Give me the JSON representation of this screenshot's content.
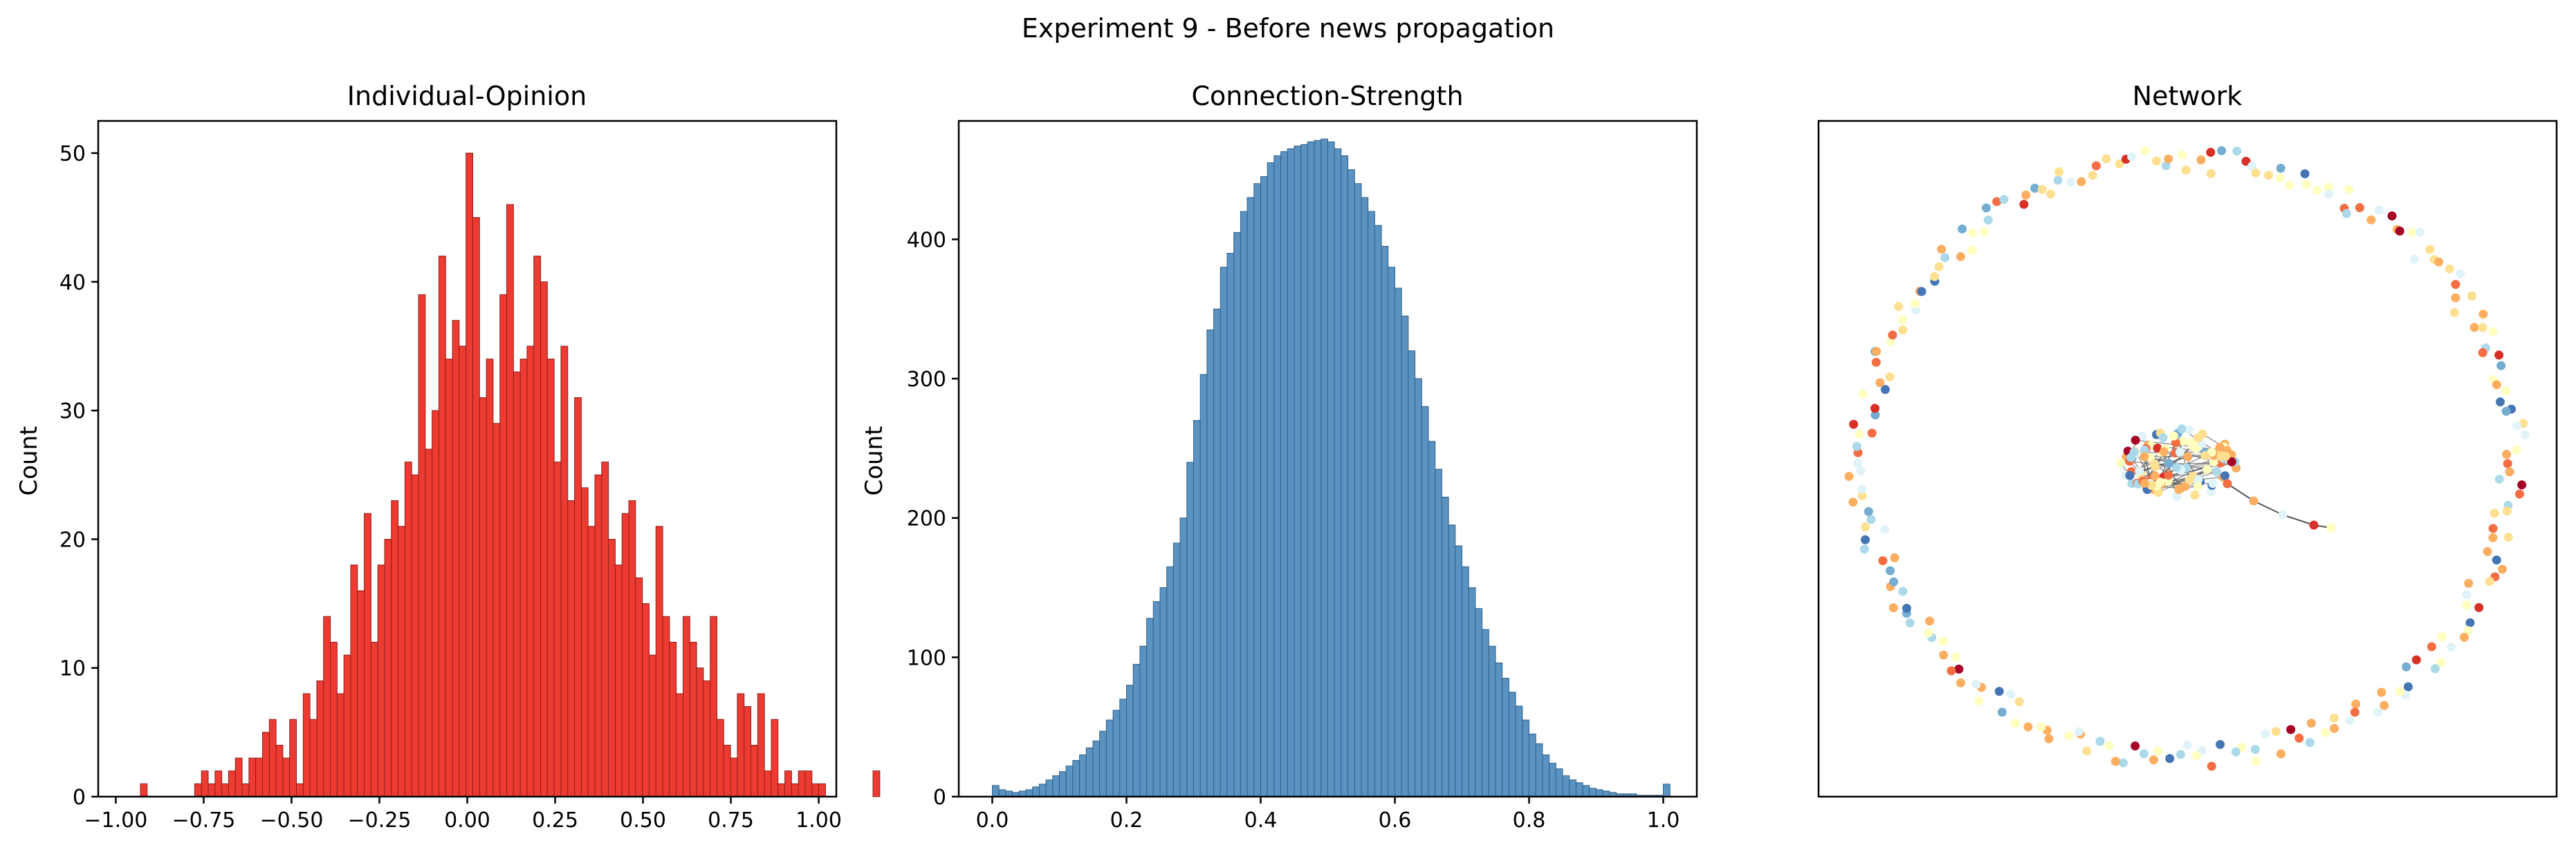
{
  "suptitle": "Experiment 9 - Before news propagation",
  "colors": {
    "opinion_bar": "#ee3b32",
    "opinion_edge": "#8a1f1a",
    "strength_bar": "#5a93c2",
    "strength_edge": "#2f5f86",
    "edge_line": "#555555",
    "node_palette": [
      "#a50026",
      "#d73027",
      "#f46d43",
      "#fdae61",
      "#fee090",
      "#ffffbf",
      "#e0f3f8",
      "#abd9e9",
      "#74add1",
      "#4575b4"
    ]
  },
  "chart_data": [
    {
      "type": "bar",
      "title": "Individual-Opinion",
      "xlabel": "",
      "ylabel": "Count",
      "xlim": [
        -1.05,
        1.05
      ],
      "ylim": [
        0,
        52.5
      ],
      "grid": false,
      "xticks": [
        -1.0,
        -0.75,
        -0.5,
        -0.25,
        0.0,
        0.25,
        0.5,
        0.75,
        1.0
      ],
      "xtick_labels": [
        "−1.00",
        "−0.75",
        "−0.50",
        "−0.25",
        "0.00",
        "0.25",
        "0.50",
        "0.75",
        "1.00"
      ],
      "yticks": [
        0,
        10,
        20,
        30,
        40,
        50
      ],
      "ytick_labels": [
        "0",
        "10",
        "20",
        "30",
        "40",
        "50"
      ],
      "bin_start": -0.93,
      "bin_width": 0.0193,
      "counts": [
        1,
        0,
        0,
        0,
        0,
        0,
        0,
        0,
        1,
        2,
        1,
        2,
        1,
        2,
        3,
        1,
        3,
        3,
        5,
        6,
        4,
        3,
        6,
        1,
        8,
        6,
        9,
        14,
        12,
        8,
        11,
        18,
        16,
        22,
        12,
        18,
        20,
        23,
        21,
        26,
        25,
        39,
        27,
        30,
        42,
        34,
        37,
        35,
        50,
        45,
        31,
        34,
        29,
        39,
        46,
        33,
        34,
        35,
        42,
        40,
        34,
        26,
        35,
        23,
        31,
        24,
        21,
        25,
        26,
        20,
        18,
        22,
        23,
        17,
        15,
        11,
        21,
        14,
        12,
        8,
        14,
        12,
        10,
        9,
        14,
        6,
        4,
        3,
        8,
        7,
        4,
        8,
        2,
        6,
        1,
        2,
        1,
        2,
        2,
        1,
        1,
        0,
        0,
        0,
        0,
        0,
        0,
        0,
        2
      ]
    },
    {
      "type": "bar",
      "title": "Connection-Strength",
      "xlabel": "",
      "ylabel": "Count",
      "xlim": [
        -0.05,
        1.05
      ],
      "ylim": [
        0,
        485
      ],
      "grid": false,
      "xticks": [
        0.0,
        0.2,
        0.4,
        0.6,
        0.8,
        1.0
      ],
      "xtick_labels": [
        "0.0",
        "0.2",
        "0.4",
        "0.6",
        "0.8",
        "1.0"
      ],
      "yticks": [
        0,
        100,
        200,
        300,
        400
      ],
      "ytick_labels": [
        "0",
        "100",
        "200",
        "300",
        "400"
      ],
      "bin_start": 0.0,
      "bin_width": 0.01,
      "counts": [
        8,
        5,
        4,
        3,
        4,
        5,
        7,
        9,
        12,
        15,
        18,
        22,
        26,
        30,
        35,
        40,
        47,
        55,
        62,
        70,
        80,
        95,
        108,
        128,
        140,
        150,
        165,
        182,
        200,
        240,
        270,
        303,
        335,
        350,
        380,
        390,
        405,
        420,
        430,
        440,
        445,
        455,
        460,
        463,
        465,
        467,
        468,
        470,
        471,
        472,
        470,
        465,
        460,
        450,
        440,
        430,
        420,
        410,
        395,
        380,
        365,
        345,
        320,
        300,
        280,
        255,
        235,
        215,
        195,
        180,
        165,
        150,
        135,
        120,
        108,
        96,
        85,
        75,
        65,
        55,
        45,
        38,
        30,
        24,
        20,
        15,
        12,
        10,
        8,
        6,
        5,
        4,
        3,
        2,
        2,
        2,
        1,
        1,
        1,
        1,
        9
      ]
    },
    {
      "type": "scatter",
      "title": "Network",
      "xlabel": "",
      "ylabel": "",
      "grid": false,
      "axes_ticks": false
    }
  ]
}
